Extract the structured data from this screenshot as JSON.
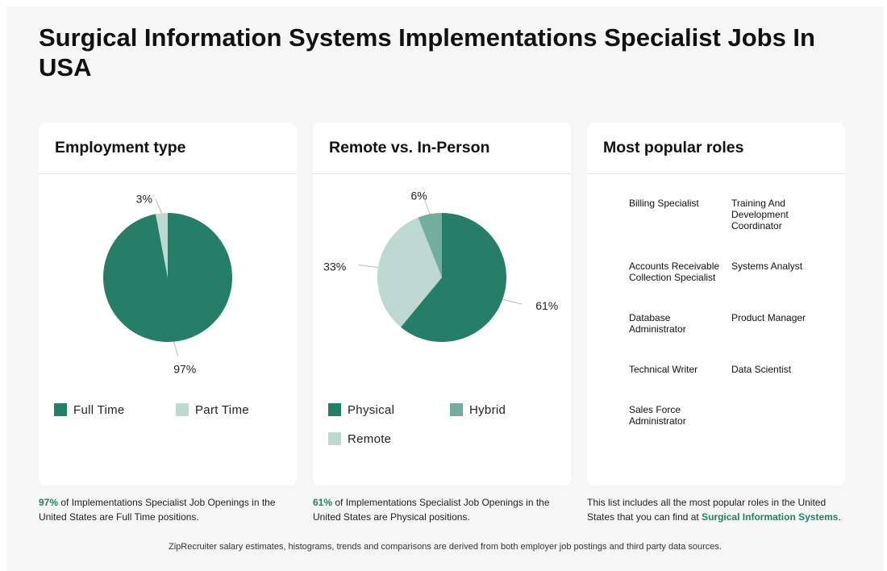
{
  "page_title": "Surgical Information Systems Implementations Specialist Jobs In USA",
  "colors": {
    "dark_green": "#267d68",
    "mid_green": "#72ad9e",
    "light_green": "#bdd9d1"
  },
  "employment": {
    "title": "Employment type",
    "legend": [
      "Full Time",
      "Part Time"
    ],
    "caption_highlight": "97%",
    "caption_text": " of Implementations Specialist Job Openings in the United States are Full Time positions."
  },
  "remote": {
    "title": "Remote vs. In-Person",
    "legend": [
      "Physical",
      "Hybrid",
      "Remote"
    ],
    "caption_highlight": "61%",
    "caption_text": " of Implementations Specialist Job Openings in the United States are Physical positions."
  },
  "roles": {
    "title": "Most popular roles",
    "items": [
      "Billing Specialist",
      "Training And Development Coordinator",
      "Accounts Receivable Collection Specialist",
      "Systems Analyst",
      "Database Administrator",
      "Product Manager",
      "Technical Writer",
      "Data Scientist",
      "Sales Force Administrator"
    ],
    "caption_text": "This list includes all the most popular roles in the United States that you can find at ",
    "caption_link": "Surgical Information Systems",
    "caption_end": "."
  },
  "footer": "ZipRecruiter salary estimates, histograms, trends and comparisons are derived from both employer job postings and third party data sources.",
  "chart_data": [
    {
      "type": "pie",
      "title": "Employment type",
      "labels": [
        "Full Time",
        "Part Time"
      ],
      "values": [
        97,
        3
      ],
      "value_labels": [
        "97%",
        "3%"
      ],
      "colors": [
        "#267d68",
        "#bdd9d1"
      ],
      "legend_position": "bottom"
    },
    {
      "type": "pie",
      "title": "Remote vs. In-Person",
      "labels": [
        "Physical",
        "Remote",
        "Hybrid"
      ],
      "values": [
        61,
        33,
        6
      ],
      "value_labels": [
        "61%",
        "33%",
        "6%"
      ],
      "colors": [
        "#267d68",
        "#bdd9d1",
        "#72ad9e"
      ],
      "legend_position": "bottom"
    }
  ]
}
